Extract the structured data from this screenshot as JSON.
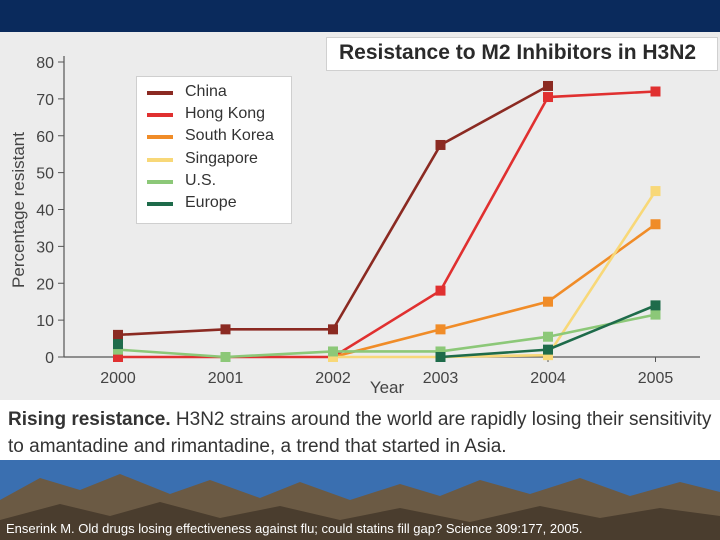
{
  "chart_data": {
    "type": "line",
    "title": "Resistance to M2 Inhibitors in H3N2",
    "xlabel": "Year",
    "ylabel": "Percentage resistant",
    "categories": [
      "2000",
      "2001",
      "2002",
      "2003",
      "2004",
      "2005"
    ],
    "yticks": [
      0,
      10,
      20,
      30,
      40,
      50,
      60,
      70,
      80
    ],
    "ylim": [
      0,
      80
    ],
    "legend_position": "upper-left",
    "series": [
      {
        "name": "China",
        "color": "#8b2a22",
        "values": [
          6,
          7.5,
          7.5,
          57.5,
          73.5,
          null
        ]
      },
      {
        "name": "Hong Kong",
        "color": "#e03030",
        "values": [
          0,
          0,
          0,
          18,
          70.5,
          72
        ]
      },
      {
        "name": "South Korea",
        "color": "#f08c28",
        "values": [
          null,
          null,
          0,
          7.5,
          15,
          36
        ]
      },
      {
        "name": "Singapore",
        "color": "#f8d878",
        "values": [
          null,
          null,
          0,
          0,
          0.5,
          45
        ]
      },
      {
        "name": "U.S.",
        "color": "#8cc878",
        "values": [
          2,
          0,
          1.5,
          1.5,
          5.5,
          11.5
        ]
      },
      {
        "name": "Europe",
        "color": "#1e6b4a",
        "values": [
          3.5,
          null,
          null,
          0,
          2,
          14
        ]
      }
    ]
  },
  "caption": {
    "lead": "Rising resistance.",
    "text": " H3N2 strains around the world are rapidly losing their sensitivity to amantadine and rimantadine, a trend that started in Asia."
  },
  "credit": "Enserink M. Old drugs losing effectiveness against flu; could statins fill gap? Science 309:177, 2005."
}
